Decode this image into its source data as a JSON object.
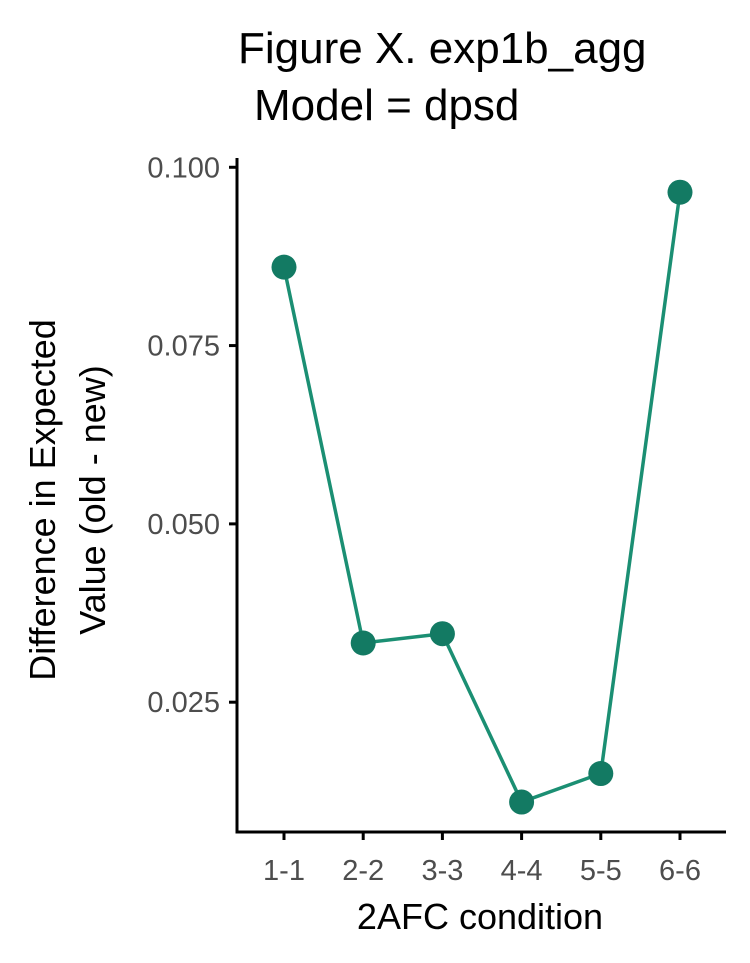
{
  "chart_data": {
    "type": "line",
    "title_line1": "Figure X. exp1b_agg",
    "title_line2": "Model = dpsd",
    "xlabel": "2AFC condition",
    "ylabel_line1": "Difference in Expected",
    "ylabel_line2": "Value (old - new)",
    "categories": [
      "1-1",
      "2-2",
      "3-3",
      "4-4",
      "5-5",
      "6-6"
    ],
    "values": [
      0.086,
      0.0333,
      0.0346,
      0.011,
      0.015,
      0.0965
    ],
    "yticks": [
      0.025,
      0.05,
      0.075,
      0.1
    ],
    "ytick_labels": [
      "0.025",
      "0.050",
      "0.075",
      "0.100"
    ],
    "ylim": [
      0.0068,
      0.1013
    ],
    "grid": false,
    "legend": "none",
    "line_color": "#1b8f73",
    "point_color": "#137a63"
  }
}
